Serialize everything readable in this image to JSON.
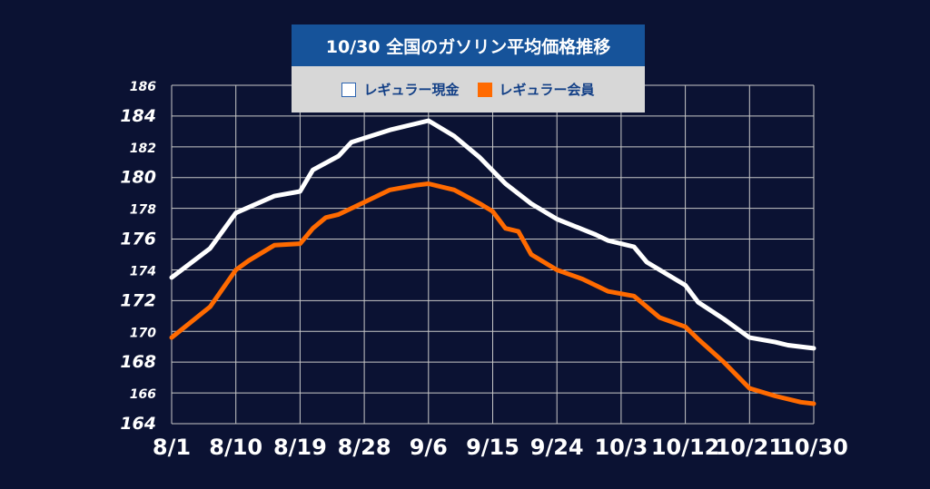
{
  "chart_data": {
    "type": "line",
    "title": "10/30 全国のガソリン平均価格推移",
    "ylim": [
      164,
      186
    ],
    "yticks": [
      164,
      166,
      168,
      170,
      172,
      174,
      176,
      178,
      180,
      182,
      184,
      186
    ],
    "x_labels": [
      {
        "text": "8/1",
        "index": 0
      },
      {
        "text": "8/10",
        "index": 5
      },
      {
        "text": "8/19",
        "index": 10
      },
      {
        "text": "8/28",
        "index": 15
      },
      {
        "text": "9/6",
        "index": 20
      },
      {
        "text": "9/15",
        "index": 25
      },
      {
        "text": "9/24",
        "index": 30
      },
      {
        "text": "10/3",
        "index": 35
      },
      {
        "text": "10/12",
        "index": 40
      },
      {
        "text": "10/21",
        "index": 45
      },
      {
        "text": "10/30",
        "index": 50
      }
    ],
    "x_count": 50,
    "grid": true,
    "legend_position": "top-center",
    "colors": {
      "background": "#0b1233",
      "grid": "#c8c8c8",
      "white_line": "#ffffff",
      "orange_line": "#ff6a00"
    },
    "series": [
      {
        "name": "レギュラー現金",
        "color": "#ffffff",
        "points": [
          [
            0,
            173.5
          ],
          [
            3,
            175.4
          ],
          [
            5,
            177.7
          ],
          [
            8,
            178.8
          ],
          [
            10,
            179.1
          ],
          [
            11,
            180.5
          ],
          [
            13,
            181.4
          ],
          [
            14,
            182.3
          ],
          [
            17,
            183.1
          ],
          [
            20,
            183.7
          ],
          [
            22,
            182.7
          ],
          [
            24,
            181.3
          ],
          [
            26,
            179.6
          ],
          [
            28,
            178.3
          ],
          [
            30,
            177.3
          ],
          [
            33,
            176.3
          ],
          [
            34,
            175.9
          ],
          [
            36,
            175.5
          ],
          [
            37,
            174.5
          ],
          [
            40,
            173.0
          ],
          [
            41,
            171.9
          ],
          [
            43,
            170.8
          ],
          [
            45,
            169.6
          ],
          [
            47,
            169.3
          ],
          [
            48,
            169.1
          ],
          [
            50,
            168.9
          ]
        ]
      },
      {
        "name": "レギュラー会員",
        "color": "#ff6a00",
        "points": [
          [
            0,
            169.6
          ],
          [
            3,
            171.6
          ],
          [
            5,
            174.0
          ],
          [
            6,
            174.6
          ],
          [
            8,
            175.6
          ],
          [
            10,
            175.7
          ],
          [
            11,
            176.7
          ],
          [
            12,
            177.4
          ],
          [
            13,
            177.6
          ],
          [
            15,
            178.4
          ],
          [
            17,
            179.2
          ],
          [
            19,
            179.5
          ],
          [
            20,
            179.6
          ],
          [
            22,
            179.2
          ],
          [
            24,
            178.3
          ],
          [
            25,
            177.8
          ],
          [
            26,
            176.7
          ],
          [
            27,
            176.5
          ],
          [
            28,
            175.0
          ],
          [
            30,
            174.0
          ],
          [
            32,
            173.4
          ],
          [
            34,
            172.6
          ],
          [
            36,
            172.3
          ],
          [
            38,
            170.9
          ],
          [
            40,
            170.3
          ],
          [
            41,
            169.5
          ],
          [
            43,
            168.0
          ],
          [
            45,
            166.3
          ],
          [
            47,
            165.8
          ],
          [
            49,
            165.4
          ],
          [
            50,
            165.3
          ]
        ]
      }
    ]
  }
}
